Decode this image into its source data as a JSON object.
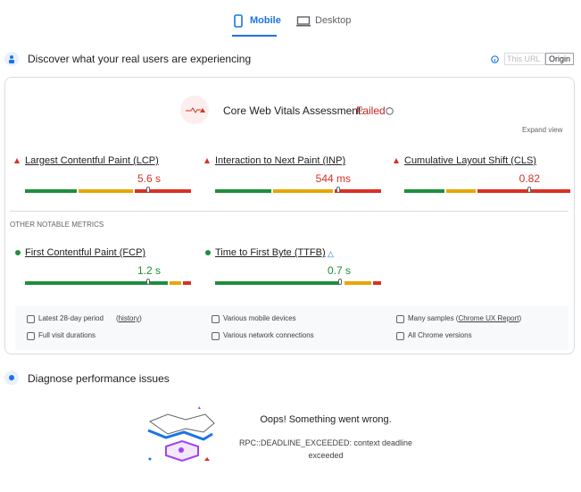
{
  "tabs": [
    "Mobile",
    "Desktop"
  ],
  "field": {
    "title": "Discover what your real users are experiencing",
    "url_toggle": [
      "This URL",
      "Origin"
    ],
    "assessment": {
      "label": "Core Web Vitals Assessment:",
      "status": "Failed"
    },
    "expand": "Expand view",
    "core_metrics": [
      {
        "name": "Largest Contentful Paint (LCP)",
        "value": "5.6 s"
      },
      {
        "name": "Interaction to Next Paint (INP)",
        "value": "544 ms"
      },
      {
        "name": "Cumulative Layout Shift (CLS)",
        "value": "0.82"
      }
    ],
    "other_heading": "OTHER NOTABLE METRICS",
    "other_metrics": [
      {
        "name": "First Contentful Paint (FCP)",
        "value": "1.2 s"
      },
      {
        "name": "Time to First Byte (TTFB)",
        "value": "0.7 s"
      }
    ],
    "details": [
      [
        "Latest 28-day period",
        "(",
        "history",
        ")"
      ],
      [
        "Full visit durations"
      ],
      [
        "Various mobile devices"
      ],
      [
        "Various network connections"
      ],
      [
        "Many samples (",
        "Chrome UX Report",
        ")"
      ],
      [
        "All Chrome versions"
      ]
    ]
  },
  "diagnose": {
    "title": "Diagnose performance issues",
    "error_title": "Oops! Something went wrong.",
    "error_message": "RPC::DEADLINE_EXCEEDED: context deadline exceeded"
  }
}
